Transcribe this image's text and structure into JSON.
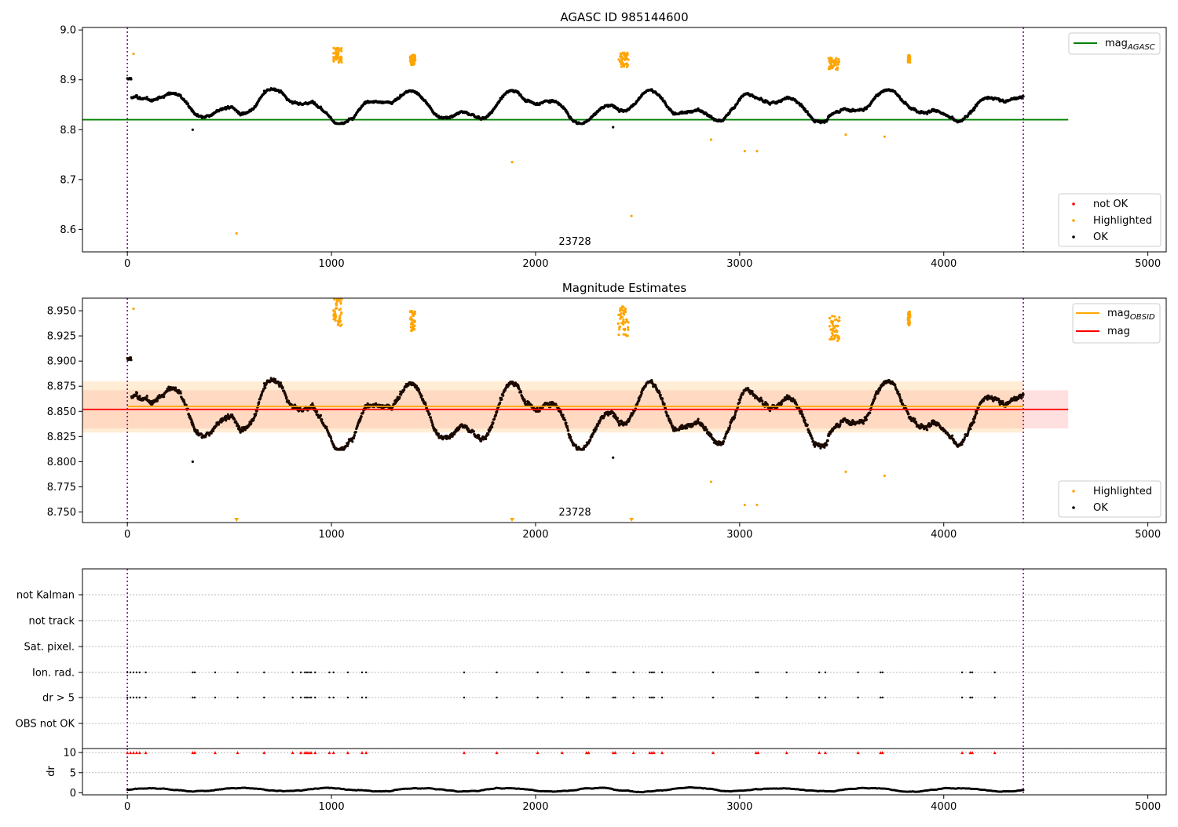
{
  "chart_data": [
    {
      "type": "scatter",
      "title": "AGASC ID 985144600",
      "xlim": [
        -220,
        5090
      ],
      "ylim": [
        8.555,
        9.005
      ],
      "xticks": [
        "0",
        "1000",
        "2000",
        "3000",
        "4000",
        "5000"
      ],
      "yticks": [
        "8.6",
        "8.7",
        "8.8",
        "8.9",
        "9.0"
      ],
      "vlines": [
        0,
        4390
      ],
      "annotation": "23728",
      "hlines": [
        {
          "name": "mag_AGASC",
          "value": 8.82,
          "x_end": 4610,
          "color": "#008000"
        }
      ],
      "legend_lines": [
        {
          "label": "mag",
          "sub": "AGASC",
          "color": "#008000"
        }
      ],
      "legend_points": [
        {
          "label": "not OK",
          "color": "#ff0000"
        },
        {
          "label": "Highlighted",
          "color": "#ffa500"
        },
        {
          "label": "OK",
          "color": "#000000"
        }
      ],
      "ok_series": {
        "color": "#000000",
        "description_value_range": [
          8.81,
          8.91
        ]
      },
      "highlighted_clusters": [
        {
          "x": [
            1010,
            1050
          ],
          "y": [
            8.935,
            8.965
          ]
        },
        {
          "x": [
            1385,
            1410
          ],
          "y": [
            8.93,
            8.95
          ]
        },
        {
          "x": [
            2405,
            2455
          ],
          "y": [
            8.925,
            8.955
          ]
        },
        {
          "x": [
            3435,
            3490
          ],
          "y": [
            8.92,
            8.945
          ]
        },
        {
          "x": [
            3825,
            3835
          ],
          "y": [
            8.935,
            8.95
          ]
        }
      ],
      "highlighted_points": [
        {
          "x": 30,
          "y": 8.952
        },
        {
          "x": 535,
          "y": 8.592
        },
        {
          "x": 1885,
          "y": 8.735
        },
        {
          "x": 2470,
          "y": 8.627
        },
        {
          "x": 2860,
          "y": 8.78
        },
        {
          "x": 3025,
          "y": 8.757
        },
        {
          "x": 3085,
          "y": 8.757
        },
        {
          "x": 3520,
          "y": 8.79
        },
        {
          "x": 3710,
          "y": 8.786
        }
      ]
    },
    {
      "type": "scatter",
      "title": "Magnitude Estimates",
      "xlim": [
        -220,
        5090
      ],
      "ylim": [
        8.7395,
        8.9625
      ],
      "xticks": [
        "0",
        "1000",
        "2000",
        "3000",
        "4000",
        "5000"
      ],
      "yticks": [
        "8.750",
        "8.775",
        "8.800",
        "8.825",
        "8.850",
        "8.875",
        "8.900",
        "8.925",
        "8.950"
      ],
      "vlines": [
        0,
        4390
      ],
      "annotation": "23728",
      "bands": [
        {
          "y0": 8.833,
          "y1": 8.871,
          "x_end": 4610,
          "color": "#ff9999",
          "opacity": 0.3
        },
        {
          "y0": 8.829,
          "y1": 8.88,
          "x_end": 4390,
          "color": "#ffcc88",
          "opacity": 0.35
        }
      ],
      "hlines": [
        {
          "name": "mag_OBSID",
          "value": 8.855,
          "x_end": 4390,
          "color": "#ffa500"
        },
        {
          "name": "mag",
          "value": 8.852,
          "x_end": 4610,
          "color": "#ff0000"
        }
      ],
      "legend_lines": [
        {
          "label": "mag",
          "sub": "OBSID",
          "color": "#ffa500"
        },
        {
          "label": "mag",
          "sub": "",
          "color": "#ff0000"
        }
      ],
      "legend_points": [
        {
          "label": "Highlighted",
          "color": "#ffa500"
        },
        {
          "label": "OK",
          "color": "#000000"
        }
      ],
      "highlighted_below_range_x": [
        535,
        1885,
        2470
      ]
    },
    {
      "type": "scatter",
      "title": "",
      "xlim": [
        -220,
        5090
      ],
      "flag_rows": [
        "not Kalman",
        "not track",
        "Sat. pixel.",
        "Ion. rad.",
        "dr > 5",
        "OBS not OK"
      ],
      "flag_x": [
        0,
        15,
        30,
        45,
        60,
        90,
        320,
        330,
        430,
        540,
        670,
        810,
        850,
        870,
        880,
        890,
        900,
        920,
        990,
        1010,
        1080,
        1150,
        1170,
        1650,
        1810,
        2010,
        2130,
        2250,
        2260,
        2380,
        2390,
        2480,
        2560,
        2570,
        2580,
        2620,
        2870,
        3080,
        3090,
        3230,
        3390,
        3420,
        3580,
        3690,
        3700,
        4090,
        4130,
        4140,
        4250
      ],
      "flag_rows_marked": [
        "Ion. rad.",
        "dr > 5"
      ]
    },
    {
      "type": "scatter",
      "ylabel": "dr",
      "xlim": [
        -220,
        5090
      ],
      "ylim": [
        -0.5,
        11
      ],
      "xticks": [
        "0",
        "1000",
        "2000",
        "3000",
        "4000",
        "5000"
      ],
      "yticks": [
        "0",
        "5",
        "10"
      ],
      "vlines": [
        0,
        4390
      ],
      "marker_value": 10,
      "dr_typical": [
        0,
        2
      ]
    }
  ]
}
